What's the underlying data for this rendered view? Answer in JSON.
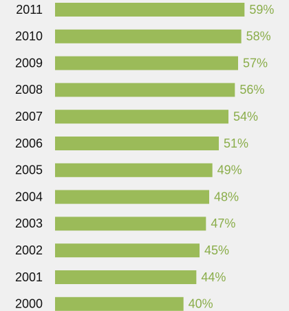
{
  "chart_data": {
    "type": "barh",
    "categories": [
      "2011",
      "2010",
      "2009",
      "2008",
      "2007",
      "2006",
      "2005",
      "2004",
      "2003",
      "2002",
      "2001",
      "2000"
    ],
    "values": [
      59,
      58,
      57,
      56,
      54,
      51,
      49,
      48,
      47,
      45,
      44,
      40
    ],
    "value_labels": [
      "59%",
      "58%",
      "57%",
      "56%",
      "54%",
      "51%",
      "49%",
      "48%",
      "47%",
      "45%",
      "44%",
      "40%"
    ],
    "color": "#9bbb59",
    "xlim": [
      0,
      60
    ]
  }
}
